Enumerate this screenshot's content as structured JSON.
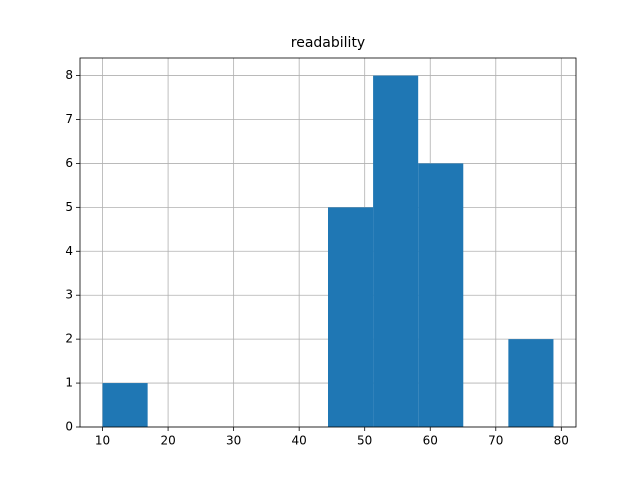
{
  "chart_data": {
    "type": "histogram",
    "title": "readability",
    "bins": [
      10,
      16.88,
      23.76,
      30.64,
      37.52,
      44.4,
      51.28,
      58.16,
      65.04,
      71.92,
      78.8
    ],
    "values": [
      1,
      0,
      0,
      0,
      0,
      5,
      8,
      6,
      0,
      2
    ],
    "color": "#1f77b4",
    "xlim": [
      6.56,
      82.24
    ],
    "xticks": [
      10,
      20,
      30,
      40,
      50,
      60,
      70,
      80
    ],
    "ylim": [
      0,
      8.4
    ],
    "yticks": [
      0,
      1,
      2,
      3,
      4,
      5,
      6,
      7,
      8
    ],
    "grid": true
  }
}
